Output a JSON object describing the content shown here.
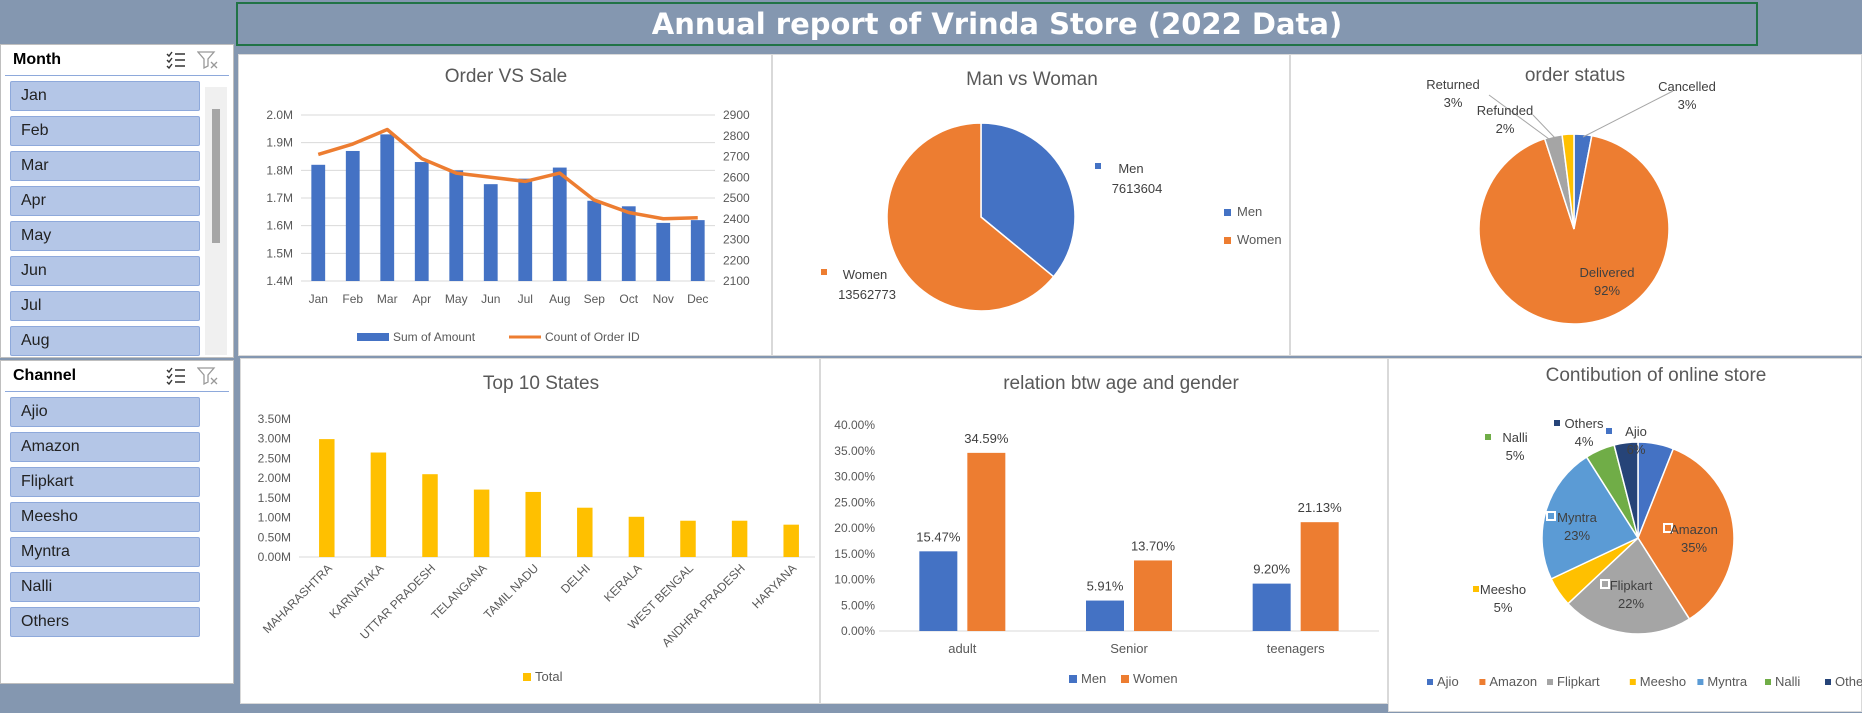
{
  "report_title": "Annual report of Vrinda Store (2022 Data)",
  "colors": {
    "blue": "#4472c4",
    "orange": "#ed7d31",
    "gray": "#a5a5a5",
    "yellow": "#ffc000",
    "lightblue": "#5b9bd5",
    "green": "#70ad47",
    "navy": "#264478",
    "slicer_item": "#b4c6e7",
    "background": "#8497b0"
  },
  "month_slicer": {
    "header": "Month",
    "icons": [
      "multi-select-icon",
      "clear-filter-icon"
    ],
    "items": [
      "Jan",
      "Feb",
      "Mar",
      "Apr",
      "May",
      "Jun",
      "Jul",
      "Aug"
    ]
  },
  "channel_slicer": {
    "header": "Channel",
    "icons": [
      "multi-select-icon",
      "clear-filter-icon"
    ],
    "items": [
      "Ajio",
      "Amazon",
      "Flipkart",
      "Meesho",
      "Myntra",
      "Nalli",
      "Others"
    ]
  },
  "chart_data": [
    {
      "id": "order_vs_sale",
      "type": "bar",
      "title": "Order VS Sale",
      "categories": [
        "Jan",
        "Feb",
        "Mar",
        "Apr",
        "May",
        "Jun",
        "Jul",
        "Aug",
        "Sep",
        "Oct",
        "Nov",
        "Dec"
      ],
      "series": [
        {
          "name": "Sum of Amount",
          "type": "bar",
          "axis": "left",
          "values": [
            1.82,
            1.87,
            1.93,
            1.83,
            1.8,
            1.75,
            1.77,
            1.81,
            1.69,
            1.67,
            1.61,
            1.62
          ]
        },
        {
          "name": "Count of Order ID",
          "type": "line",
          "axis": "right",
          "values": [
            2710,
            2760,
            2830,
            2690,
            2620,
            2600,
            2580,
            2620,
            2490,
            2430,
            2400,
            2405
          ]
        }
      ],
      "left_axis": {
        "ylim": [
          1.4,
          2.0
        ],
        "ticks": [
          "1.4M",
          "1.5M",
          "1.6M",
          "1.7M",
          "1.8M",
          "1.9M",
          "2.0M"
        ]
      },
      "right_axis": {
        "ylim": [
          2100,
          2900
        ],
        "ticks": [
          "2100",
          "2200",
          "2300",
          "2400",
          "2500",
          "2600",
          "2700",
          "2800",
          "2900"
        ]
      },
      "legend_position": "bottom"
    },
    {
      "id": "man_vs_woman",
      "type": "pie",
      "title": "Man vs Woman",
      "labels": [
        "Men",
        "Women"
      ],
      "values": [
        7613604,
        13562773
      ],
      "value_labels": [
        "7613604",
        "13562773"
      ],
      "legend": [
        "Men",
        "Women"
      ],
      "legend_position": "right"
    },
    {
      "id": "order_status",
      "type": "pie",
      "title": "order status",
      "labels": [
        "Cancelled",
        "Delivered",
        "Returned",
        "Refunded"
      ],
      "values": [
        3,
        92,
        3,
        2
      ],
      "value_labels": [
        "3%",
        "92%",
        "3%",
        "2%"
      ]
    },
    {
      "id": "top_states",
      "type": "bar",
      "title": "Top 10 States",
      "categories": [
        "MAHARASHTRA",
        "KARNATAKA",
        "UTTAR PRADESH",
        "TELANGANA",
        "TAMIL NADU",
        "DELHI",
        "KERALA",
        "WEST BENGAL",
        "ANDHRA PRADESH",
        "HARYANA"
      ],
      "series": [
        {
          "name": "Total",
          "values": [
            2.99,
            2.65,
            2.1,
            1.71,
            1.65,
            1.25,
            1.02,
            0.92,
            0.92,
            0.82
          ]
        }
      ],
      "ylim": [
        0,
        3.5
      ],
      "ticks": [
        "0.00M",
        "0.50M",
        "1.00M",
        "1.50M",
        "2.00M",
        "2.50M",
        "3.00M",
        "3.50M"
      ],
      "legend_position": "bottom"
    },
    {
      "id": "age_gender",
      "type": "bar",
      "title": "relation btw age and gender",
      "categories": [
        "adult",
        "Senior",
        "teenagers"
      ],
      "series": [
        {
          "name": "Men",
          "values": [
            15.47,
            5.91,
            9.2
          ],
          "labels": [
            "15.47%",
            "5.91%",
            "9.20%"
          ]
        },
        {
          "name": "Women",
          "values": [
            34.59,
            13.7,
            21.13
          ],
          "labels": [
            "34.59%",
            "13.70%",
            "21.13%"
          ]
        }
      ],
      "ylim": [
        0,
        40
      ],
      "ticks": [
        "0.00%",
        "5.00%",
        "10.00%",
        "15.00%",
        "20.00%",
        "25.00%",
        "30.00%",
        "35.00%",
        "40.00%"
      ],
      "legend_position": "bottom"
    },
    {
      "id": "online_store",
      "type": "pie",
      "title": "Contibution of online store",
      "labels": [
        "Ajio",
        "Amazon",
        "Flipkart",
        "Meesho",
        "Myntra",
        "Nalli",
        "Others"
      ],
      "values": [
        6,
        35,
        22,
        5,
        23,
        5,
        4
      ],
      "value_labels": [
        "6%",
        "35%",
        "22%",
        "5%",
        "23%",
        "5%",
        "4%"
      ],
      "legend": [
        "Ajio",
        "Amazon",
        "Flipkart",
        "Meesho",
        "Myntra",
        "Nalli",
        "Others"
      ],
      "legend_position": "bottom"
    }
  ]
}
